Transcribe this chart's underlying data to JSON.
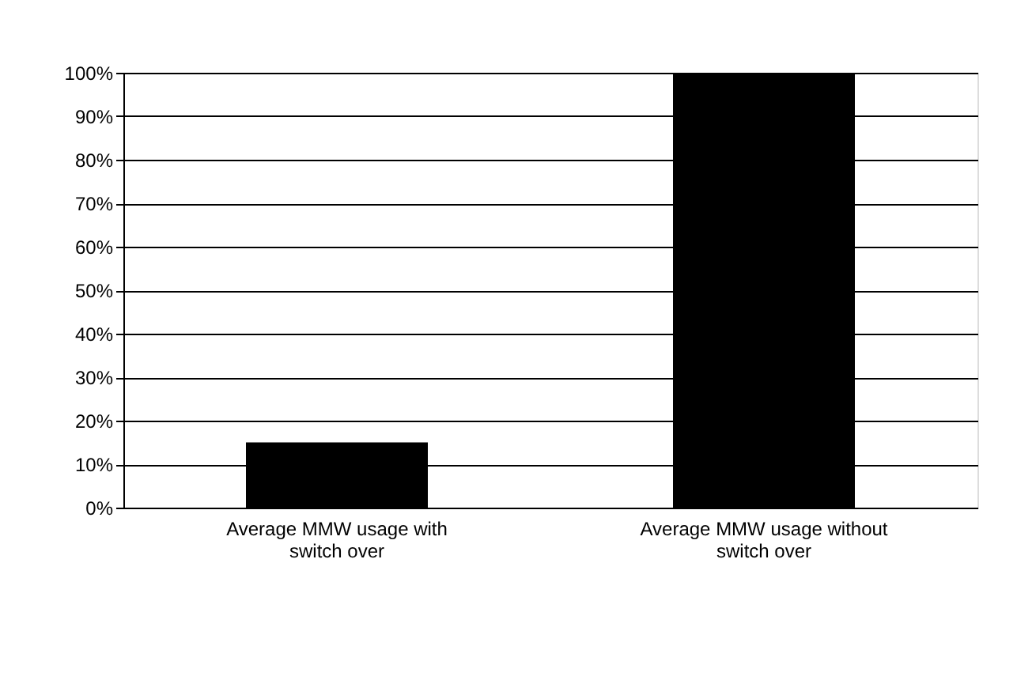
{
  "chart_data": {
    "type": "bar",
    "categories": [
      "Average MMW usage with switch over",
      "Average MMW usage without switch over"
    ],
    "values": [
      15,
      100
    ],
    "color": "#000000",
    "ylim": [
      0,
      100
    ],
    "yticks": [
      {
        "value": 0,
        "label": "0%"
      },
      {
        "value": 10,
        "label": "10%"
      },
      {
        "value": 20,
        "label": "20%"
      },
      {
        "value": 30,
        "label": "30%"
      },
      {
        "value": 40,
        "label": "40%"
      },
      {
        "value": 50,
        "label": "50%"
      },
      {
        "value": 60,
        "label": "60%"
      },
      {
        "value": 70,
        "label": "70%"
      },
      {
        "value": 80,
        "label": "80%"
      },
      {
        "value": 90,
        "label": "90%"
      },
      {
        "value": 100,
        "label": "100%"
      }
    ],
    "grid": "y"
  }
}
